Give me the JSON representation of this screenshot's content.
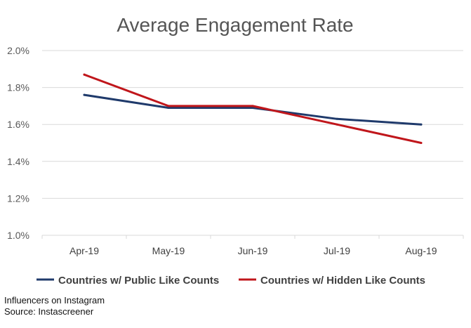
{
  "chart_data": {
    "type": "line",
    "title": "Average Engagement Rate",
    "categories": [
      "Apr-19",
      "May-19",
      "Jun-19",
      "Jul-19",
      "Aug-19"
    ],
    "ylim": [
      0.01,
      0.02
    ],
    "y_ticks": [
      "1.0%",
      "1.2%",
      "1.4%",
      "1.6%",
      "1.8%",
      "2.0%"
    ],
    "y_tick_values": [
      0.01,
      0.012,
      0.014,
      0.016,
      0.018,
      0.02
    ],
    "grid": true,
    "legend_position": "bottom",
    "series": [
      {
        "name": "Countries w/ Public Like Counts",
        "color": "#1f3a6b",
        "values": [
          0.0176,
          0.0169,
          0.0169,
          0.0163,
          0.016
        ]
      },
      {
        "name": "Countries w/ Hidden Like Counts",
        "color": "#c0161b",
        "values": [
          0.0187,
          0.017,
          0.017,
          0.016,
          0.015
        ]
      }
    ]
  },
  "footnotes": {
    "line1": "Influencers on Instagram",
    "line2": "Source: Instascreener"
  }
}
